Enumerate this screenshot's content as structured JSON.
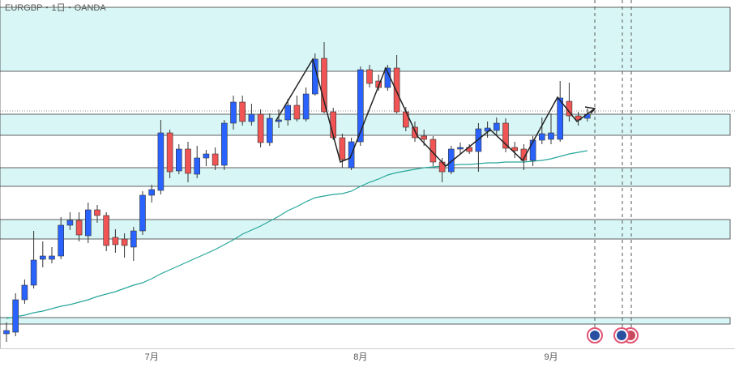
{
  "chart_data": {
    "type": "candlestick",
    "title": "EURGBP・1日・OANDA",
    "categories": [
      null,
      null,
      null,
      null,
      null,
      null,
      null,
      null,
      null,
      null,
      null,
      null,
      null,
      null,
      null,
      null,
      "7月",
      null,
      null,
      null,
      null,
      null,
      null,
      null,
      null,
      null,
      null,
      null,
      null,
      null,
      null,
      null,
      null,
      null,
      null,
      null,
      null,
      null,
      null,
      "8月",
      null,
      null,
      null,
      null,
      null,
      null,
      null,
      null,
      null,
      null,
      null,
      null,
      null,
      null,
      null,
      null,
      null,
      null,
      null,
      null,
      "9月",
      null,
      null,
      null,
      null
    ],
    "open": [
      0.8388,
      0.839,
      0.843,
      0.8448,
      0.848,
      0.848,
      0.8484,
      0.8522,
      0.8528,
      0.8509,
      0.8541,
      0.8534,
      0.8507,
      0.8505,
      0.8495,
      0.8515,
      0.8559,
      0.8565,
      0.8636,
      0.8589,
      0.8616,
      0.8585,
      0.8605,
      0.861,
      0.8596,
      0.8648,
      0.8674,
      0.865,
      0.8659,
      0.8624,
      0.865,
      0.8652,
      0.867,
      0.8653,
      0.8684,
      0.8728,
      0.8662,
      0.863,
      0.8593,
      0.8625,
      0.8714,
      0.87,
      0.8692,
      0.8716,
      0.8662,
      0.8643,
      0.8632,
      0.8628,
      0.86,
      0.8588,
      0.8616,
      0.8618,
      0.8613,
      0.8638,
      0.8639,
      0.8648,
      0.8618,
      0.8616,
      0.8602,
      0.8627,
      0.8628,
      0.8628,
      0.8675,
      0.8657,
      0.8654
    ],
    "high": [
      0.8402,
      0.8438,
      0.8455,
      0.8515,
      0.8502,
      0.8495,
      0.8532,
      0.8538,
      0.8538,
      0.855,
      0.8547,
      0.8538,
      0.8517,
      0.8512,
      0.852,
      0.8564,
      0.8572,
      0.8652,
      0.864,
      0.8622,
      0.8625,
      0.862,
      0.8615,
      0.8618,
      0.8652,
      0.8682,
      0.8682,
      0.8672,
      0.8665,
      0.866,
      0.8665,
      0.8678,
      0.8682,
      0.8692,
      0.8734,
      0.8748,
      0.8667,
      0.8635,
      0.863,
      0.8718,
      0.872,
      0.8708,
      0.872,
      0.8732,
      0.8668,
      0.865,
      0.864,
      0.8632,
      0.8605,
      0.862,
      0.8624,
      0.8622,
      0.8648,
      0.865,
      0.8655,
      0.8654,
      0.8625,
      0.8622,
      0.8632,
      0.8655,
      0.866,
      0.87,
      0.8698,
      0.8662,
      0.8666
    ],
    "low": [
      0.8378,
      0.8385,
      0.8425,
      0.8444,
      0.847,
      0.8475,
      0.848,
      0.8516,
      0.8502,
      0.85,
      0.8525,
      0.849,
      0.8488,
      0.8482,
      0.8478,
      0.851,
      0.855,
      0.856,
      0.858,
      0.8585,
      0.8575,
      0.858,
      0.8595,
      0.859,
      0.859,
      0.864,
      0.8645,
      0.8645,
      0.8618,
      0.862,
      0.8642,
      0.8645,
      0.865,
      0.865,
      0.8682,
      0.866,
      0.8627,
      0.8593,
      0.859,
      0.862,
      0.8692,
      0.8688,
      0.8688,
      0.866,
      0.8638,
      0.8625,
      0.862,
      0.8595,
      0.8575,
      0.8585,
      0.861,
      0.861,
      0.8588,
      0.863,
      0.8632,
      0.8612,
      0.8605,
      0.859,
      0.8595,
      0.8622,
      0.8622,
      0.8625,
      0.865,
      0.8645,
      0.865
    ],
    "close": [
      0.8392,
      0.843,
      0.8448,
      0.8479,
      0.8484,
      0.8484,
      0.8522,
      0.8528,
      0.851,
      0.8541,
      0.8534,
      0.8497,
      0.8498,
      0.8497,
      0.8515,
      0.8559,
      0.8566,
      0.8636,
      0.8588,
      0.8616,
      0.8586,
      0.8605,
      0.861,
      0.8596,
      0.8648,
      0.8674,
      0.865,
      0.8659,
      0.8624,
      0.8654,
      0.8652,
      0.867,
      0.8653,
      0.8684,
      0.8727,
      0.8662,
      0.863,
      0.8603,
      0.8625,
      0.8714,
      0.8697,
      0.8692,
      0.8716,
      0.8662,
      0.8643,
      0.863,
      0.8628,
      0.86,
      0.8588,
      0.8616,
      0.8618,
      0.8613,
      0.8641,
      0.8642,
      0.8648,
      0.8617,
      0.8614,
      0.8602,
      0.8627,
      0.8635,
      0.8636,
      0.8679,
      0.8657,
      0.8652,
      0.8659
    ],
    "up_color": "#2962ff",
    "down_color": "#f05454",
    "moving_average": {
      "color": "#26a69a",
      "values": [
        0.8407,
        0.8409,
        0.8411,
        0.8414,
        0.8416,
        0.8419,
        0.8422,
        0.8424,
        0.8427,
        0.843,
        0.8434,
        0.8437,
        0.844,
        0.8444,
        0.8448,
        0.8451,
        0.8456,
        0.8462,
        0.8467,
        0.8472,
        0.8477,
        0.8482,
        0.8487,
        0.8492,
        0.8498,
        0.8504,
        0.8511,
        0.8516,
        0.8521,
        0.8527,
        0.8533,
        0.854,
        0.8545,
        0.8551,
        0.8556,
        0.8558,
        0.856,
        0.8561,
        0.8564,
        0.857,
        0.8575,
        0.8579,
        0.8584,
        0.8587,
        0.8589,
        0.8591,
        0.8593,
        0.8594,
        0.8595,
        0.8596,
        0.8597,
        0.8597,
        0.8598,
        0.8599,
        0.8599,
        0.86,
        0.86,
        0.86,
        0.8601,
        0.8602,
        0.8604,
        0.8607,
        0.861,
        0.8612,
        0.8614
      ]
    },
    "zones": [
      [
        0.8712,
        0.8791
      ],
      [
        0.8633,
        0.8659
      ],
      [
        0.857,
        0.8593
      ],
      [
        0.8505,
        0.8529
      ],
      [
        0.84,
        0.8408
      ]
    ],
    "zone_color": "#d9f6f6",
    "price_line": 0.8663,
    "ylim": [
      0.837,
      0.88
    ]
  }
}
